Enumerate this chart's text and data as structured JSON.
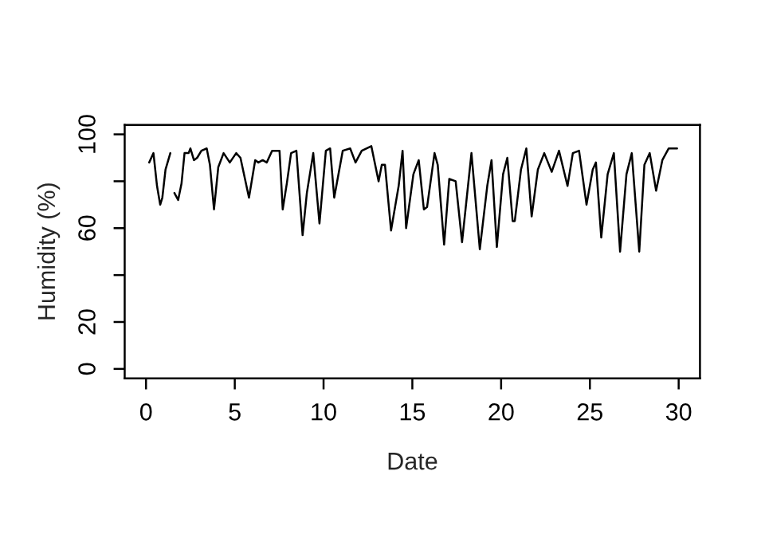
{
  "chart_data": {
    "type": "line",
    "xlabel": "Date",
    "ylabel": "Humidity (%)",
    "color": "#000000",
    "x": [
      0.18,
      0.42,
      0.62,
      0.8,
      0.92,
      1.1,
      1.37,
      1.5,
      1.6,
      1.81,
      2.0,
      2.17,
      2.4,
      2.5,
      2.7,
      2.88,
      3.12,
      3.42,
      3.6,
      3.83,
      4.07,
      4.37,
      4.72,
      5.08,
      5.32,
      5.8,
      6.15,
      6.33,
      6.57,
      6.8,
      7.1,
      7.52,
      7.7,
      7.93,
      8.17,
      8.47,
      8.82,
      9.06,
      9.42,
      9.77,
      10.13,
      10.37,
      10.6,
      11.08,
      11.5,
      11.8,
      12.15,
      12.69,
      13.1,
      13.28,
      13.46,
      13.8,
      14.23,
      14.45,
      14.65,
      15.06,
      15.36,
      15.65,
      15.83,
      16.25,
      16.43,
      16.79,
      17.08,
      17.44,
      17.8,
      18.33,
      18.8,
      19.22,
      19.46,
      19.76,
      20.11,
      20.35,
      20.65,
      20.77,
      21.12,
      21.42,
      21.72,
      22.07,
      22.43,
      22.85,
      23.26,
      23.74,
      24.04,
      24.39,
      24.81,
      25.16,
      25.34,
      25.64,
      26.0,
      26.35,
      26.7,
      27.06,
      27.36,
      27.78,
      28.07,
      28.37,
      28.73,
      29.08,
      29.44,
      29.91
    ],
    "values": [
      88,
      92,
      78,
      70,
      73,
      85,
      92,
      null,
      75,
      72,
      79,
      92,
      92,
      94,
      89,
      90,
      93,
      94,
      87,
      68,
      86,
      92,
      88,
      92,
      90,
      73,
      89,
      88,
      89,
      88,
      93,
      93,
      68,
      79,
      92,
      93,
      57,
      75,
      92,
      62,
      93,
      94,
      73,
      93,
      94,
      88,
      93,
      95,
      80,
      87,
      87,
      59,
      78,
      93,
      60,
      83,
      89,
      68,
      69,
      92,
      87,
      53,
      81,
      80,
      54,
      92,
      51,
      78,
      89,
      52,
      83,
      90,
      63,
      63,
      85,
      94,
      65,
      85,
      92,
      84,
      93,
      78,
      92,
      93,
      70,
      85,
      88,
      56,
      83,
      92,
      50,
      83,
      92,
      50,
      87,
      92,
      76,
      89,
      94,
      94
    ],
    "xlim": [
      -1.2,
      31.2
    ],
    "ylim": [
      -4,
      104
    ],
    "xticks": [
      0,
      5,
      10,
      15,
      20,
      25,
      30
    ],
    "yticks": [
      0,
      20,
      {
        "value": 40,
        "label": null
      },
      60,
      {
        "value": 80,
        "label": null
      },
      100
    ],
    "grid": false,
    "line_style": "solid",
    "marker": "none"
  }
}
